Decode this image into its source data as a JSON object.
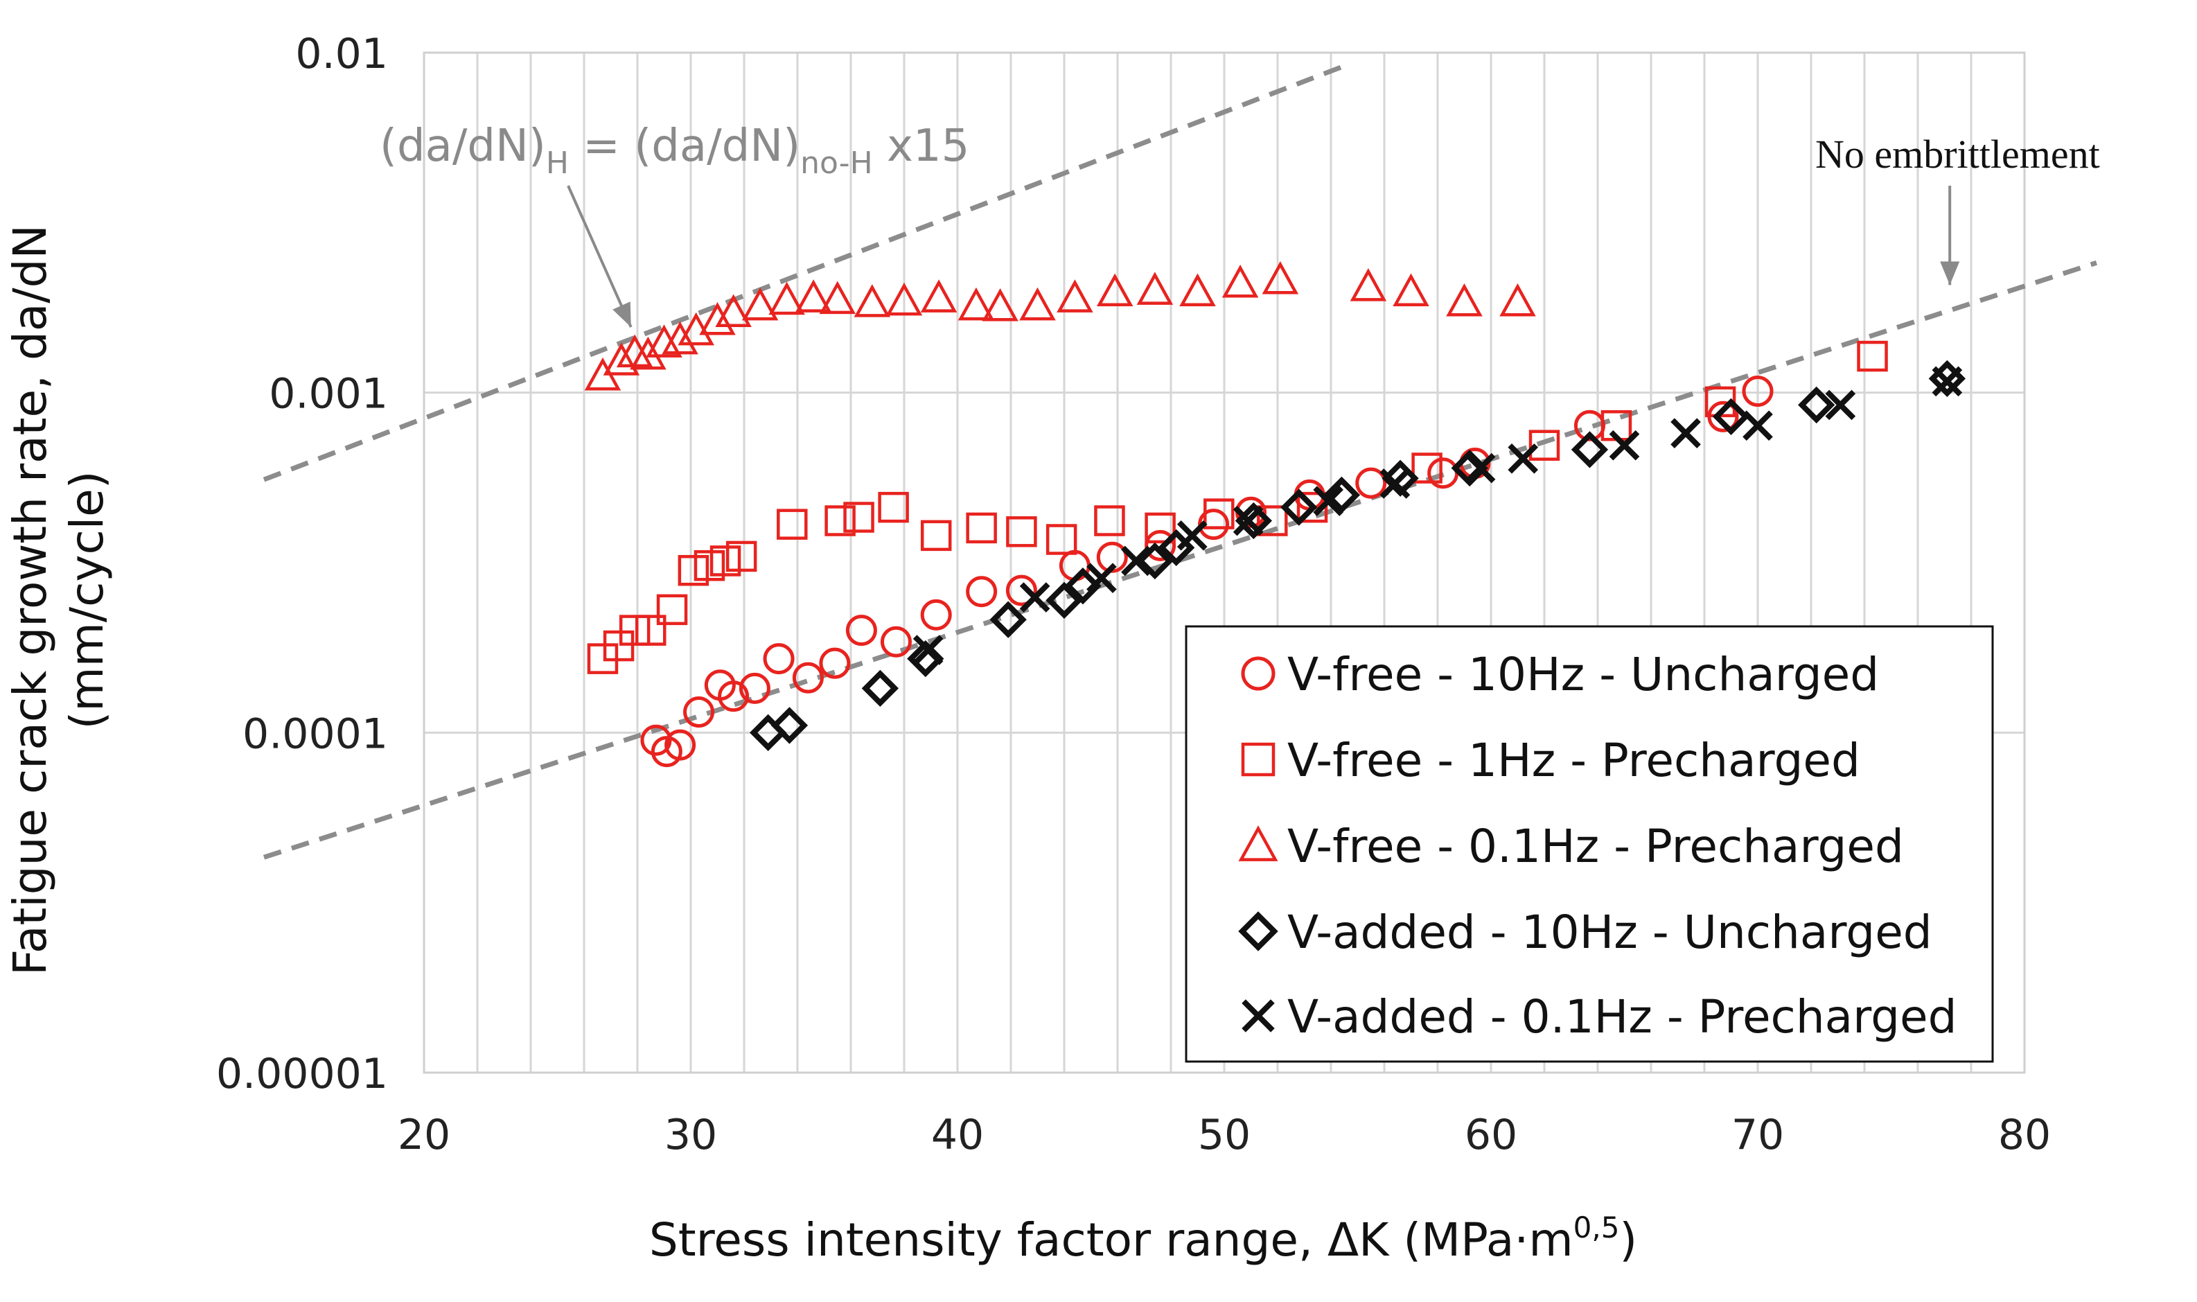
{
  "chart_data": {
    "type": "scatter",
    "title": "",
    "xlabel": "Stress intensity factor range, ΔK (MPa·m",
    "xlabel_sup": "0,5",
    "xlabel_end": ")",
    "ylabel_line1": "Fatigue crack growth rate, da/dN",
    "ylabel_line2": "(mm/cycle)",
    "xlim": [
      20,
      80
    ],
    "ylim": [
      1e-05,
      0.01
    ],
    "yscale": "log",
    "x_ticks": [
      "20",
      "30",
      "40",
      "50",
      "60",
      "70",
      "80"
    ],
    "y_ticks": [
      "0.00001",
      "0.0001",
      "0.001",
      "0.01"
    ],
    "grid": "vertical minor lines",
    "legend_position": "bottom-right",
    "series": [
      {
        "name": "V-free - 10Hz - Uncharged",
        "marker": "circle",
        "color": "#e8231f",
        "x": [
          28.7,
          29.1,
          29.6,
          30.3,
          31.1,
          31.6,
          32.4,
          33.3,
          34.4,
          35.4,
          36.4,
          37.7,
          39.2,
          40.9,
          42.4,
          44.4,
          45.8,
          47.6,
          49.6,
          51.0,
          53.2,
          55.5,
          58.2,
          59.4,
          63.7,
          68.7,
          70.0
        ],
        "y": [
          9.5e-05,
          8.8e-05,
          9.2e-05,
          0.000115,
          0.000138,
          0.000128,
          0.000135,
          0.000165,
          0.000145,
          0.00016,
          0.0002,
          0.000185,
          0.000222,
          0.00026,
          0.000262,
          0.00031,
          0.000328,
          0.000355,
          0.00041,
          0.000445,
          0.0005,
          0.000542,
          0.00058,
          0.00062,
          0.0008,
          0.00085,
          0.00101
        ]
      },
      {
        "name": "V-free - 1Hz - Precharged",
        "marker": "square",
        "color": "#e8231f",
        "x": [
          26.7,
          27.3,
          27.9,
          28.5,
          29.3,
          30.1,
          30.7,
          31.3,
          31.9,
          33.8,
          35.6,
          36.3,
          37.6,
          39.2,
          40.9,
          42.4,
          43.9,
          45.7,
          47.6,
          49.8,
          51.8,
          53.3,
          57.6,
          62.0,
          64.7,
          68.6,
          74.3
        ],
        "y": [
          0.000165,
          0.00018,
          0.0002,
          0.0002,
          0.00023,
          0.0003,
          0.00031,
          0.00032,
          0.00033,
          0.00041,
          0.00042,
          0.00043,
          0.00046,
          0.00038,
          0.0004,
          0.00039,
          0.00037,
          0.00042,
          0.0004,
          0.00044,
          0.00042,
          0.00046,
          0.0006,
          0.0007,
          0.0008,
          0.00094,
          0.00128
        ]
      },
      {
        "name": "V-free - 0.1Hz - Precharged",
        "marker": "triangle",
        "color": "#e8231f",
        "x": [
          26.7,
          27.4,
          27.9,
          28.4,
          29.0,
          29.6,
          30.2,
          31.0,
          31.6,
          32.6,
          33.6,
          34.6,
          35.5,
          36.8,
          38.0,
          39.3,
          40.7,
          41.6,
          43.0,
          44.4,
          45.9,
          47.4,
          49.0,
          50.6,
          52.1,
          55.4,
          57.0,
          59.0,
          61.0
        ],
        "y": [
          0.00112,
          0.00124,
          0.00131,
          0.00129,
          0.0014,
          0.00143,
          0.00152,
          0.00163,
          0.00172,
          0.0018,
          0.00187,
          0.0019,
          0.00188,
          0.00184,
          0.00186,
          0.0019,
          0.0018,
          0.00179,
          0.0018,
          0.0019,
          0.00198,
          0.002,
          0.00198,
          0.0021,
          0.00215,
          0.00205,
          0.00198,
          0.00185,
          0.00185
        ]
      },
      {
        "name": "V-added - 10Hz - Uncharged",
        "marker": "diamond",
        "color": "#111111",
        "x": [
          32.9,
          33.7,
          37.1,
          38.8,
          41.9,
          44.0,
          44.7,
          47.4,
          48.2,
          51.1,
          52.8,
          54.4,
          56.6,
          59.2,
          63.7,
          69.0,
          72.2,
          77.1
        ],
        "y": [
          0.0001,
          0.000105,
          0.000135,
          0.000165,
          0.000215,
          0.000245,
          0.00027,
          0.00032,
          0.00035,
          0.00042,
          0.00046,
          0.0005,
          0.00056,
          0.0006,
          0.00068,
          0.00085,
          0.00092,
          0.0011
        ]
      },
      {
        "name": "V-added - 0.1Hz - Precharged",
        "marker": "cross",
        "color": "#111111",
        "x": [
          38.9,
          42.9,
          45.4,
          46.7,
          48.8,
          50.9,
          53.9,
          56.4,
          59.6,
          61.2,
          65.0,
          67.3,
          70.0,
          73.1,
          77.1
        ],
        "y": [
          0.000175,
          0.00025,
          0.000285,
          0.00032,
          0.00038,
          0.00042,
          0.00048,
          0.00054,
          0.0006,
          0.00064,
          0.0007,
          0.00076,
          0.0008,
          0.00092,
          0.00108
        ]
      }
    ],
    "reference_lines": [
      {
        "name": "no-embrittlement",
        "style": "dashed",
        "color": "#8c8c8c",
        "x": [
          14.0,
          82.7
        ],
        "y": [
          4.3e-05,
          0.00241
        ]
      },
      {
        "name": "15x-embrittlement",
        "style": "dashed",
        "color": "#8c8c8c",
        "x": [
          14.0,
          54.6
        ],
        "y": [
          0.000555,
          0.0092
        ]
      }
    ],
    "annotations": [
      {
        "id": "formula",
        "parts": [
          "(da/dN)",
          "H",
          " = (da/dN)",
          "no-H",
          " x15"
        ],
        "arrow_to": [
          27.5,
          0.00128
        ]
      },
      {
        "id": "no-embrittlement",
        "text": "No embrittlement",
        "arrow_to": [
          77.2,
          0.00175
        ]
      }
    ]
  }
}
